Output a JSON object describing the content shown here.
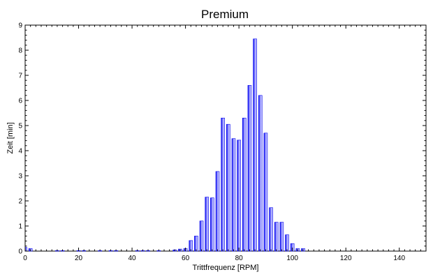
{
  "chart_data": {
    "type": "bar",
    "title": "Premium",
    "xlabel": "Trittfrequenz [RPM]",
    "ylabel": "Zeit [min]",
    "xlim": [
      0,
      150
    ],
    "ylim": [
      0,
      9
    ],
    "x_ticks": [
      0,
      20,
      40,
      60,
      80,
      100,
      120,
      140
    ],
    "y_ticks": [
      0,
      1,
      2,
      3,
      4,
      5,
      6,
      7,
      8,
      9
    ],
    "bar_width": 1.3,
    "grid": false,
    "legend": "none",
    "bar_color": "#0000ee",
    "bar_highlight": "#c0c0ff",
    "x": [
      0,
      2,
      12,
      14,
      20,
      22,
      28,
      32,
      34,
      42,
      44,
      46,
      50,
      56,
      58,
      60,
      62,
      64,
      66,
      68,
      70,
      72,
      74,
      76,
      78,
      80,
      82,
      84,
      86,
      88,
      90,
      92,
      94,
      96,
      98,
      100,
      102,
      104
    ],
    "values": [
      0.15,
      0.1,
      0.02,
      0.02,
      0.02,
      0.02,
      0.02,
      0.02,
      0.02,
      0.02,
      0.02,
      0.02,
      0.02,
      0.05,
      0.08,
      0.1,
      0.42,
      0.6,
      1.2,
      2.15,
      2.12,
      3.17,
      5.3,
      5.05,
      4.48,
      4.42,
      5.3,
      6.6,
      8.45,
      6.2,
      4.7,
      1.73,
      1.15,
      1.15,
      0.65,
      0.3,
      0.1,
      0.1
    ]
  }
}
